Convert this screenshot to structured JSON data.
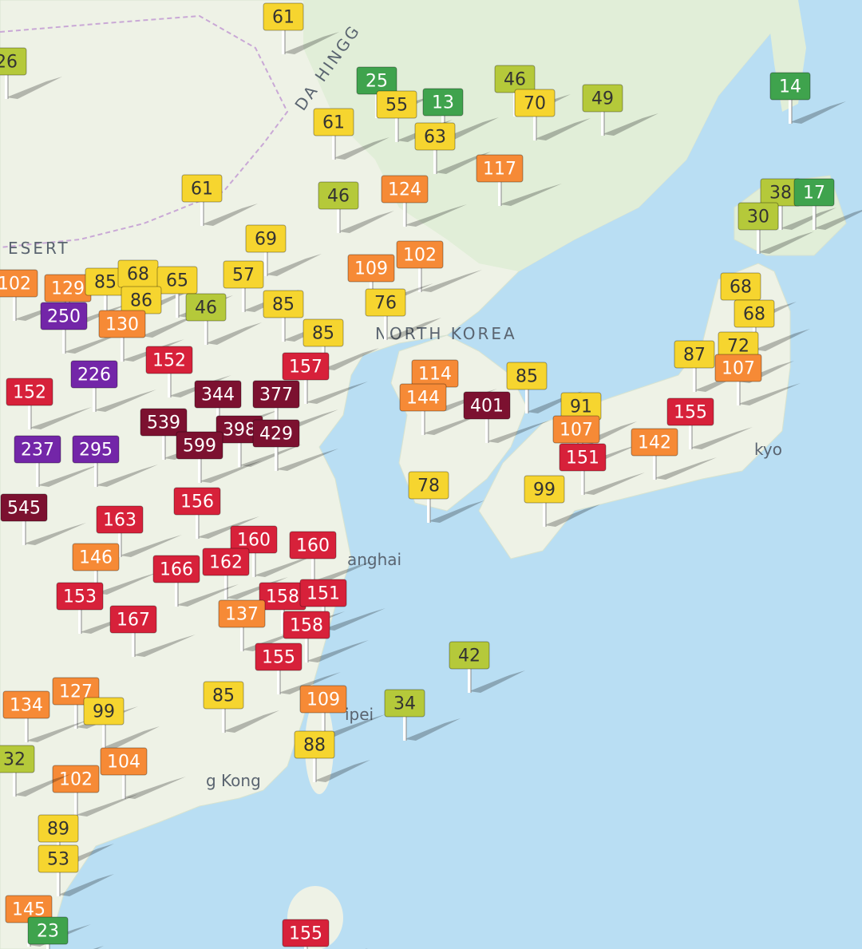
{
  "map": {
    "place_labels": [
      "DA HINGG",
      "ESERT",
      "NORTH KOREA",
      "anghai",
      "ipei",
      "g Kong",
      "kyo"
    ],
    "markers": [
      61,
      26,
      25,
      13,
      46,
      70,
      49,
      14,
      55,
      61,
      63,
      117,
      61,
      46,
      124,
      38,
      17,
      30,
      69,
      102,
      109,
      102,
      129,
      85,
      68,
      65,
      57,
      86,
      46,
      85,
      250,
      76,
      130,
      68,
      68,
      85,
      72,
      87,
      152,
      157,
      226,
      85,
      107,
      114,
      144,
      401,
      152,
      344,
      377,
      91,
      155,
      539,
      398,
      429,
      107,
      142,
      237,
      295,
      599,
      151,
      78,
      99,
      545,
      156,
      163,
      160,
      160,
      146,
      162,
      166,
      153,
      158,
      151,
      167,
      137,
      158,
      155,
      42,
      127,
      134,
      85,
      109,
      34,
      99,
      88,
      104,
      102,
      32,
      89,
      53,
      145,
      155,
      23
    ]
  }
}
